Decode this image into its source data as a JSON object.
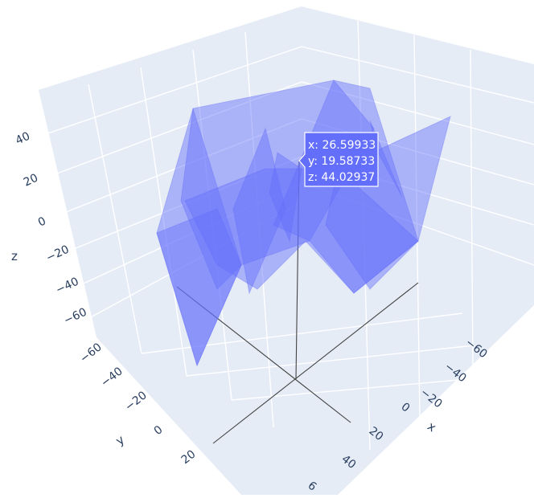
{
  "chart_data": {
    "type": "mesh3d",
    "axes": {
      "x": {
        "label": "x",
        "ticks": [
          "−60",
          "−40",
          "−20",
          "0",
          "20",
          "40",
          "6"
        ]
      },
      "y": {
        "label": "y",
        "ticks": [
          "−60",
          "−40",
          "−20",
          "0",
          "20"
        ]
      },
      "z": {
        "label": "z",
        "ticks": [
          "40",
          "20",
          "0",
          "−20",
          "−40",
          "−60"
        ]
      }
    },
    "mesh_color": "#636efa",
    "opacity": 0.5,
    "hover": {
      "x": "x: 26.59933",
      "y": "y: 19.58733",
      "z": "z: 44.02937"
    }
  }
}
